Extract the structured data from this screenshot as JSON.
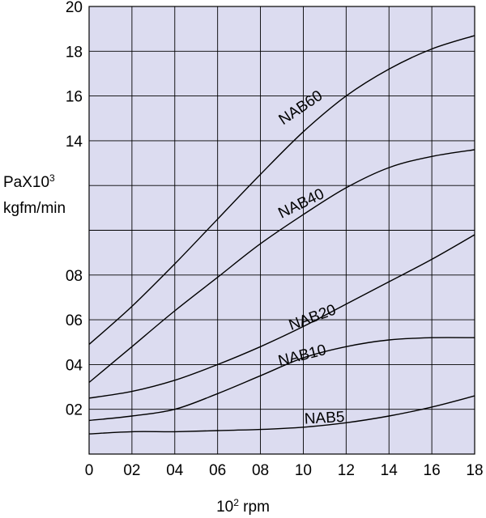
{
  "chart_data": {
    "type": "line",
    "title": "",
    "ylabel_line1": "PaX10",
    "ylabel_line1_sup": "3",
    "ylabel_line2": "kgfm/min",
    "xlabel_base": "10",
    "xlabel_sup": "2",
    "xlabel_unit": " rpm",
    "xlim": [
      0,
      18
    ],
    "ylim": [
      0,
      20
    ],
    "grid": true,
    "plot_background": "#dcdcf0",
    "x_ticks": [
      {
        "value": 0,
        "label": "0"
      },
      {
        "value": 2,
        "label": "02"
      },
      {
        "value": 4,
        "label": "04"
      },
      {
        "value": 6,
        "label": "06"
      },
      {
        "value": 8,
        "label": "08"
      },
      {
        "value": 10,
        "label": "10"
      },
      {
        "value": 12,
        "label": "12"
      },
      {
        "value": 14,
        "label": "14"
      },
      {
        "value": 16,
        "label": "16"
      },
      {
        "value": 18,
        "label": "18"
      }
    ],
    "y_ticks": [
      {
        "value": 2,
        "label": "02"
      },
      {
        "value": 4,
        "label": "04"
      },
      {
        "value": 6,
        "label": "06"
      },
      {
        "value": 8,
        "label": "08"
      },
      {
        "value": 10,
        "label": ""
      },
      {
        "value": 12,
        "label": ""
      },
      {
        "value": 14,
        "label": "14"
      },
      {
        "value": 16,
        "label": "16"
      },
      {
        "value": 18,
        "label": "18"
      },
      {
        "value": 20,
        "label": "20"
      }
    ],
    "series": [
      {
        "name": "NAB60",
        "label_at": [
          10,
          15.3
        ],
        "label_angle": -34,
        "x": [
          0,
          2,
          4,
          6,
          8,
          10,
          12,
          14,
          16,
          18
        ],
        "y": [
          4.9,
          6.6,
          8.5,
          10.5,
          12.5,
          14.4,
          16.0,
          17.2,
          18.1,
          18.7
        ]
      },
      {
        "name": "NAB40",
        "label_at": [
          10,
          11.0
        ],
        "label_angle": -26,
        "x": [
          0,
          2,
          4,
          6,
          8,
          10,
          12,
          14,
          16,
          18
        ],
        "y": [
          3.2,
          4.8,
          6.4,
          7.9,
          9.4,
          10.7,
          11.9,
          12.8,
          13.3,
          13.6
        ]
      },
      {
        "name": "NAB20",
        "label_at": [
          10.5,
          5.9
        ],
        "label_angle": -20,
        "x": [
          0,
          2,
          4,
          6,
          8,
          10,
          12,
          14,
          16,
          18
        ],
        "y": [
          2.5,
          2.8,
          3.3,
          4.0,
          4.8,
          5.7,
          6.7,
          7.7,
          8.7,
          9.8
        ]
      },
      {
        "name": "NAB10",
        "label_at": [
          10,
          4.2
        ],
        "label_angle": -14,
        "x": [
          0,
          2,
          4,
          6,
          8,
          10,
          12,
          14,
          16,
          18
        ],
        "y": [
          1.5,
          1.7,
          2.0,
          2.7,
          3.5,
          4.3,
          4.8,
          5.1,
          5.2,
          5.2
        ]
      },
      {
        "name": "NAB5",
        "label_at": [
          11,
          1.4
        ],
        "label_angle": -3,
        "x": [
          0,
          2,
          4,
          6,
          8,
          10,
          12,
          14,
          16,
          18
        ],
        "y": [
          0.9,
          1.0,
          1.0,
          1.05,
          1.1,
          1.2,
          1.4,
          1.7,
          2.1,
          2.6
        ]
      }
    ]
  }
}
